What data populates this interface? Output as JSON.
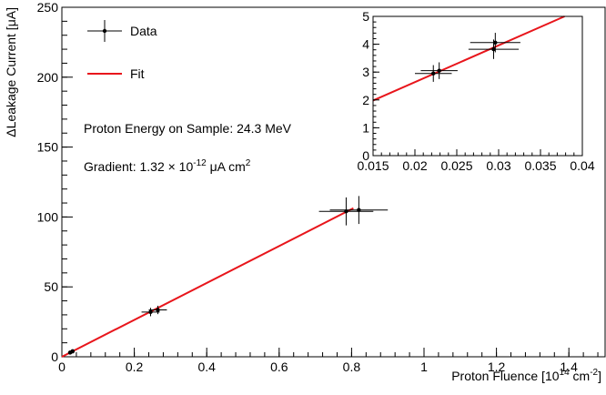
{
  "chart_data": [
    {
      "type": "scatter",
      "xlabel_main": "Proton Fluence [10",
      "xlabel_exp": "14",
      "xlabel_unit": " cm",
      "xlabel_unit_exp": "-2",
      "xlabel_close": "]",
      "ylabel_prefix": "Δ",
      "ylabel": "Leakage Current [μA]",
      "xlim": [
        0,
        1.5
      ],
      "ylim": [
        0,
        250
      ],
      "xticks": [
        0,
        0.2,
        0.4,
        0.6,
        0.8,
        1,
        1.2,
        1.4
      ],
      "xtick_labels": [
        "0",
        "0.2",
        "0.4",
        "0.6",
        "0.8",
        "1",
        "1.2",
        "1.4"
      ],
      "yticks": [
        0,
        50,
        100,
        150,
        200,
        250
      ],
      "ytick_labels": [
        "0",
        "50",
        "100",
        "150",
        "200",
        "250"
      ],
      "points": [
        {
          "x": 0.0225,
          "y": 2.95,
          "xerr": 0.002,
          "yerr": 0.3
        },
        {
          "x": 0.023,
          "y": 3.05,
          "xerr": 0.002,
          "yerr": 0.3
        },
        {
          "x": 0.0295,
          "y": 3.8,
          "xerr": 0.003,
          "yerr": 0.35
        },
        {
          "x": 0.0297,
          "y": 4.05,
          "xerr": 0.003,
          "yerr": 0.35
        },
        {
          "x": 0.245,
          "y": 32,
          "xerr": 0.025,
          "yerr": 3
        },
        {
          "x": 0.265,
          "y": 33.5,
          "xerr": 0.025,
          "yerr": 3
        },
        {
          "x": 0.785,
          "y": 104,
          "xerr": 0.075,
          "yerr": 10
        },
        {
          "x": 0.82,
          "y": 105,
          "xerr": 0.08,
          "yerr": 10
        }
      ],
      "fit": {
        "name": "Fit",
        "slope": 132,
        "intercept": 0,
        "x_range": [
          0,
          0.805
        ],
        "color": "#e8151b"
      },
      "legend": {
        "data_label": "Data",
        "fit_label": "Fit",
        "position": "top-left"
      },
      "annotations": {
        "energy": "Proton Energy on Sample: 24.3 MeV",
        "gradient_prefix": "Gradient: 1.32 × 10",
        "gradient_exp": "-12",
        "gradient_unit": " μA cm",
        "gradient_unit_exp": "2"
      }
    },
    {
      "type": "scatter",
      "name": "inset",
      "xlim": [
        0.015,
        0.04
      ],
      "ylim": [
        0,
        5
      ],
      "xticks": [
        0.015,
        0.02,
        0.025,
        0.03,
        0.035,
        0.04
      ],
      "xtick_labels": [
        "0.015",
        "0.02",
        "0.025",
        "0.03",
        "0.035",
        "0.04"
      ],
      "yticks": [
        0,
        1,
        2,
        3,
        4,
        5
      ],
      "ytick_labels": [
        "0",
        "1",
        "2",
        "3",
        "4",
        "5"
      ],
      "points": [
        {
          "x": 0.0222,
          "y": 2.95,
          "xerr": 0.0022,
          "yerr": 0.3
        },
        {
          "x": 0.0229,
          "y": 3.05,
          "xerr": 0.0022,
          "yerr": 0.3
        },
        {
          "x": 0.0294,
          "y": 3.82,
          "xerr": 0.003,
          "yerr": 0.35
        },
        {
          "x": 0.0296,
          "y": 4.06,
          "xerr": 0.003,
          "yerr": 0.35
        }
      ],
      "fit": {
        "slope": 132,
        "intercept": 0,
        "x_range": [
          0.015,
          0.04
        ],
        "color": "#e8151b"
      }
    }
  ]
}
